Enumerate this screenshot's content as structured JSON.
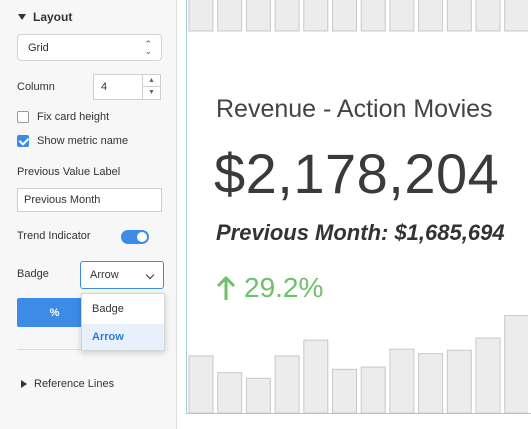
{
  "panel": {
    "layout_title": "Layout",
    "layout_value": "Grid",
    "column_label": "Column",
    "column_value": "4",
    "fix_card_height_label": "Fix card height",
    "fix_card_height_checked": false,
    "show_metric_name_label": "Show metric name",
    "show_metric_name_checked": true,
    "previous_value_label": "Previous Value Label",
    "previous_value_input": "Previous Month",
    "trend_indicator_label": "Trend Indicator",
    "trend_indicator_on": true,
    "badge_label": "Badge",
    "badge_value": "Arrow",
    "badge_options": [
      "Badge",
      "Arrow"
    ],
    "percent_button": "%",
    "reference_lines_label": "Reference Lines"
  },
  "card": {
    "title": "Revenue - Action Movies",
    "value": "$2,178,204",
    "previous": "Previous Month: $1,685,694",
    "trend": "29.2%",
    "trend_icon": "arrow-up-icon",
    "trend_color": "#6ec06a",
    "bar_color": "#ececec",
    "bar_border": "#c8c8c8",
    "sparkline_levels": [
      0.51,
      0.36,
      0.31,
      0.51,
      0.65,
      0.39,
      0.41,
      0.57,
      0.53,
      0.56,
      0.67,
      0.87
    ]
  },
  "colors": {
    "accent": "#3c8ce7",
    "card_border": "#9fd2d8"
  }
}
